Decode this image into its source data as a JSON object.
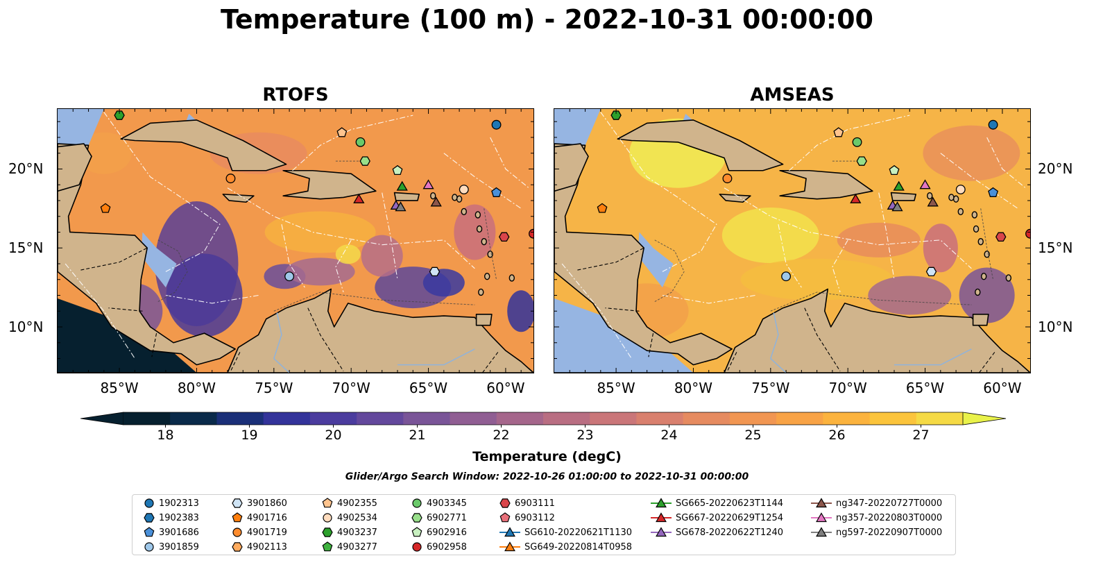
{
  "title": "Temperature (100 m) - 2022-10-31 00:00:00",
  "panels": [
    {
      "title": "RTOFS",
      "style": "rtofs"
    },
    {
      "title": "AMSEAS",
      "style": "amseas"
    }
  ],
  "lon_ticks": [
    "85°W",
    "80°W",
    "75°W",
    "70°W",
    "65°W",
    "60°W"
  ],
  "lat_ticks": [
    "20°N",
    "15°N",
    "10°N"
  ],
  "colorbar": {
    "label": "Temperature (degC)",
    "ticks": [
      "18",
      "19",
      "20",
      "21",
      "22",
      "23",
      "24",
      "25",
      "26",
      "27"
    ],
    "min": 17.5,
    "max": 27.5,
    "extend": "both",
    "colors": [
      "#06202f",
      "#0a2a4a",
      "#1a2f78",
      "#33339a",
      "#4b3c9e",
      "#63489c",
      "#7a5598",
      "#905e93",
      "#a5668b",
      "#b96e82",
      "#ca7679",
      "#d9806e",
      "#e68b60",
      "#f19652",
      "#f8a346",
      "#fbb33e",
      "#fbc43c",
      "#f5da45"
    ],
    "low_color": "#06202f",
    "high_color": "#e9f24a"
  },
  "search_window": "Glider/Argo Search Window: 2022-10-26 01:00:00 to 2022-10-31 00:00:00",
  "legend": [
    {
      "label": "1902313",
      "marker": "circle",
      "color": "#1f77b4"
    },
    {
      "label": "1902383",
      "marker": "hexagon",
      "color": "#1f77b4"
    },
    {
      "label": "3901686",
      "marker": "pentagon",
      "color": "#4a90d9"
    },
    {
      "label": "3901859",
      "marker": "circle",
      "color": "#9fc8ea"
    },
    {
      "label": "3901860",
      "marker": "hexagon",
      "color": "#cfe4f5"
    },
    {
      "label": "4901716",
      "marker": "pentagon",
      "color": "#ff7f0e"
    },
    {
      "label": "4901719",
      "marker": "circle",
      "color": "#ff8c2e"
    },
    {
      "label": "4902113",
      "marker": "hexagon",
      "color": "#ffab5e"
    },
    {
      "label": "4902355",
      "marker": "pentagon",
      "color": "#ffc48e"
    },
    {
      "label": "4902534",
      "marker": "circle",
      "color": "#ffdcbe"
    },
    {
      "label": "4903237",
      "marker": "hexagon",
      "color": "#2ca02c"
    },
    {
      "label": "4903277",
      "marker": "pentagon",
      "color": "#3fb23f"
    },
    {
      "label": "4903345",
      "marker": "circle",
      "color": "#6ac96a"
    },
    {
      "label": "6902771",
      "marker": "hexagon",
      "color": "#98df8a"
    },
    {
      "label": "6902916",
      "marker": "pentagon",
      "color": "#c8f0c0"
    },
    {
      "label": "6902958",
      "marker": "circle",
      "color": "#d62728"
    },
    {
      "label": "6903111",
      "marker": "hexagon",
      "color": "#d9454a"
    },
    {
      "label": "6903112",
      "marker": "pentagon",
      "color": "#e8707a"
    },
    {
      "label": "SG610-20220621T1130",
      "marker": "triangle-line",
      "color": "#1f77b4"
    },
    {
      "label": "SG649-20220814T0958",
      "marker": "triangle-line",
      "color": "#ff7f0e"
    },
    {
      "label": "SG665-20220623T1144",
      "marker": "triangle-line",
      "color": "#2ca02c"
    },
    {
      "label": "SG667-20220629T1254",
      "marker": "triangle-line",
      "color": "#d62728"
    },
    {
      "label": "SG678-20220622T1240",
      "marker": "triangle-line",
      "color": "#9467bd"
    },
    {
      "label": "ng347-20220727T0000",
      "marker": "triangle-line",
      "color": "#8c564b"
    },
    {
      "label": "ng357-20220803T0000",
      "marker": "triangle-line",
      "color": "#e377c2"
    },
    {
      "label": "ng597-20220907T0000",
      "marker": "triangle-line",
      "color": "#7f7f7f"
    }
  ],
  "map_markers": [
    {
      "id": "1902313",
      "lon": -60.6,
      "lat": 22.8,
      "marker": "circle",
      "color": "#1f77b4"
    },
    {
      "id": "4903237",
      "lon": -85.0,
      "lat": 23.4,
      "marker": "hexagon",
      "color": "#2ca02c"
    },
    {
      "id": "4902355",
      "lon": -70.6,
      "lat": 22.3,
      "marker": "pentagon",
      "color": "#ffc48e"
    },
    {
      "id": "4903345",
      "lon": -69.4,
      "lat": 21.7,
      "marker": "circle",
      "color": "#6ac96a"
    },
    {
      "id": "6902771",
      "lon": -69.1,
      "lat": 20.5,
      "marker": "hexagon",
      "color": "#98df8a"
    },
    {
      "id": "6902916",
      "lon": -67.0,
      "lat": 19.9,
      "marker": "pentagon",
      "color": "#c8f0c0"
    },
    {
      "id": "4901719",
      "lon": -77.8,
      "lat": 19.4,
      "marker": "circle",
      "color": "#ff8c2e"
    },
    {
      "id": "4902534",
      "lon": -62.7,
      "lat": 18.7,
      "marker": "circle",
      "color": "#ffdcbe"
    },
    {
      "id": "3901686",
      "lon": -60.6,
      "lat": 18.5,
      "marker": "pentagon",
      "color": "#4a90d9"
    },
    {
      "id": "4901716",
      "lon": -85.9,
      "lat": 17.5,
      "marker": "pentagon",
      "color": "#ff7f0e"
    },
    {
      "id": "6903111",
      "lon": -60.1,
      "lat": 15.7,
      "marker": "hexagon",
      "color": "#d9454a"
    },
    {
      "id": "6902958",
      "lon": -58.2,
      "lat": 15.9,
      "marker": "circle",
      "color": "#d62728"
    },
    {
      "id": "3901860",
      "lon": -64.6,
      "lat": 13.5,
      "marker": "hexagon",
      "color": "#cfe4f5"
    },
    {
      "id": "3901859",
      "lon": -74.0,
      "lat": 13.2,
      "marker": "circle",
      "color": "#9fc8ea"
    },
    {
      "id": "SG665-20220623T1144",
      "lon": -66.7,
      "lat": 18.9,
      "marker": "triangle",
      "color": "#2ca02c"
    },
    {
      "id": "ng357-20220803T0000",
      "lon": -65.0,
      "lat": 19.0,
      "marker": "triangle",
      "color": "#e377c2"
    },
    {
      "id": "SG667-20220629T1254",
      "lon": -69.5,
      "lat": 18.1,
      "marker": "triangle",
      "color": "#d62728"
    },
    {
      "id": "ng347-20220727T0000",
      "lon": -64.5,
      "lat": 17.9,
      "marker": "triangle",
      "color": "#8c564b"
    },
    {
      "id": "SG678-20220622T1240",
      "lon": -67.1,
      "lat": 17.7,
      "marker": "triangle",
      "color": "#9467bd"
    },
    {
      "id": "ng597-20220907T0000",
      "lon": -66.8,
      "lat": 17.6,
      "marker": "triangle",
      "color": "#7f7f7f"
    }
  ]
}
